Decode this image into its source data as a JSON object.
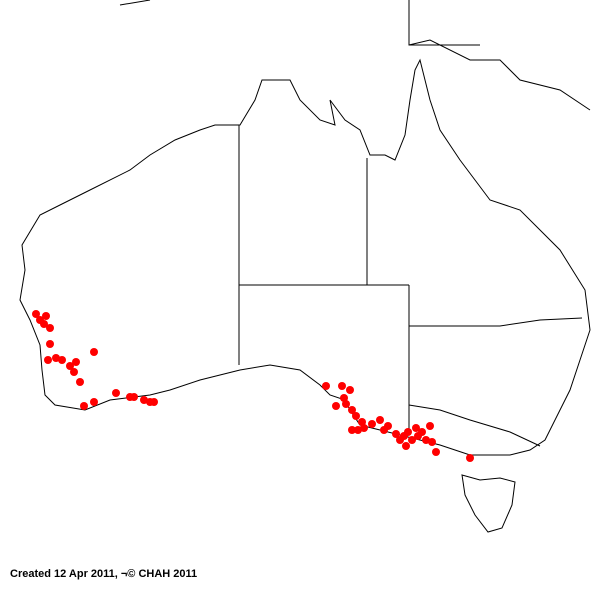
{
  "caption": "Created 12 Apr 2011, ¬© CHAH 2011",
  "colors": {
    "occurrence": "#ff0000",
    "coastline": "#000000",
    "background": "#ffffff"
  },
  "map": {
    "region": "Australia",
    "marker": "occurrence-dot"
  }
}
